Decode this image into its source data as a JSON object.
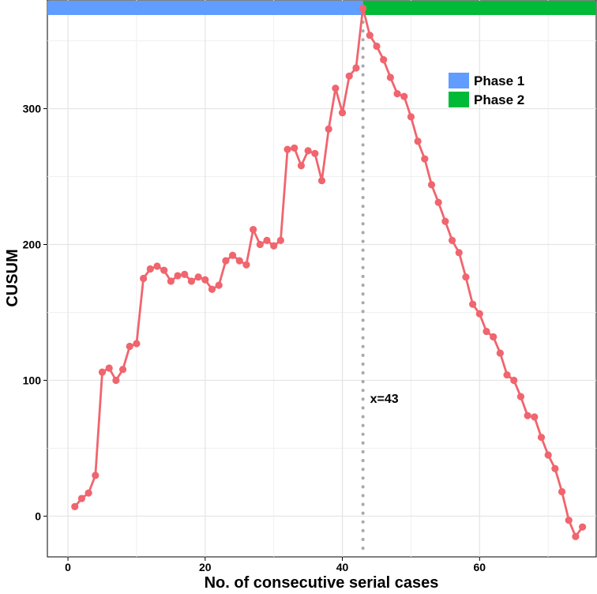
{
  "chart_data": {
    "type": "line",
    "xlabel": "No. of consecutive serial cases",
    "ylabel": "CUSUM",
    "xlim": [
      -3,
      77
    ],
    "ylim": [
      -30,
      380
    ],
    "xticks": [
      0,
      20,
      40,
      60
    ],
    "yticks": [
      0,
      100,
      200,
      300
    ],
    "grid": true,
    "legend_position": "top-right",
    "phases": [
      {
        "name": "Phase 1",
        "x_start": -3,
        "x_end": 43,
        "color": "#619cff"
      },
      {
        "name": "Phase 2",
        "x_start": 43,
        "x_end": 77,
        "color": "#00ba38"
      }
    ],
    "vline": {
      "x": 43,
      "label": "x=43"
    },
    "series": [
      {
        "color": "#f0656e",
        "x": [
          1,
          2,
          3,
          4,
          5,
          6,
          7,
          8,
          9,
          10,
          11,
          12,
          13,
          14,
          15,
          16,
          17,
          18,
          19,
          20,
          21,
          22,
          23,
          24,
          25,
          26,
          27,
          28,
          29,
          30,
          31,
          32,
          33,
          34,
          35,
          36,
          37,
          38,
          39,
          40,
          41,
          42,
          43,
          44,
          45,
          46,
          47,
          48,
          49,
          50,
          51,
          52,
          53,
          54,
          55,
          56,
          57,
          58,
          59,
          60,
          61,
          62,
          63,
          64,
          65,
          66,
          67,
          68,
          69,
          70,
          71,
          72,
          73,
          74,
          75
        ],
        "values": [
          7,
          13,
          17,
          30,
          106,
          109,
          100,
          108,
          125,
          127,
          175,
          182,
          184,
          181,
          173,
          177,
          178,
          173,
          176,
          174,
          167,
          170,
          188,
          192,
          188,
          185,
          211,
          200,
          203,
          199,
          203,
          270,
          271,
          258,
          269,
          267,
          247,
          285,
          315,
          297,
          324,
          330,
          374,
          354,
          346,
          336,
          323,
          311,
          309,
          294,
          276,
          263,
          244,
          231,
          217,
          203,
          194,
          176,
          156,
          149,
          136,
          132,
          120,
          104,
          100,
          88,
          74,
          73,
          58,
          45,
          35,
          18,
          -3,
          -15,
          -8
        ]
      }
    ]
  }
}
